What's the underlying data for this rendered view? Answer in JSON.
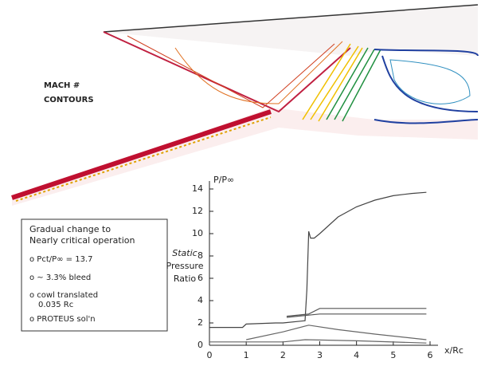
{
  "panel_label": [
    "MACH #",
    "CONTOURS"
  ],
  "info_box": {
    "heading": [
      "Gradual change to",
      "Nearly critical operation"
    ],
    "items": [
      "o  Pct/P∞ = 13.7",
      "o  ~ 3.3% bleed",
      "o  cowl translated",
      "0.035 Rc",
      "o  PROTEUS sol'n"
    ]
  },
  "chart_data": {
    "type": "line",
    "ylabel": "P/P∞",
    "xlabel": "x/Rc",
    "ylabel_lines": [
      "Static",
      "Pressure",
      "Ratio"
    ],
    "xlim": [
      0,
      6
    ],
    "ylim": [
      0,
      14
    ],
    "xticks": [
      0,
      1,
      2,
      3,
      4,
      5,
      6
    ],
    "yticks": [
      0,
      2,
      4,
      6,
      8,
      10,
      12,
      14
    ],
    "series": [
      {
        "color": "#444444",
        "x": [
          0,
          0.9,
          1.0,
          1.8,
          2.0,
          2.6,
          2.65,
          2.7,
          2.75,
          2.85,
          3.0,
          3.5,
          4.0,
          4.5,
          5.0,
          5.5,
          5.9
        ],
        "values": [
          1.6,
          1.6,
          1.9,
          2.0,
          2.0,
          2.2,
          5,
          10.2,
          9.6,
          9.6,
          10,
          11.5,
          12.4,
          13,
          13.4,
          13.6,
          13.7
        ]
      },
      {
        "color": "#555555",
        "x": [
          2.1,
          2.7,
          3.0,
          4.0,
          5.0,
          5.9
        ],
        "values": [
          2.6,
          2.8,
          3.3,
          3.3,
          3.3,
          3.3
        ]
      },
      {
        "color": "#555555",
        "x": [
          2.1,
          2.7,
          3.0,
          4.0,
          5.0,
          5.9
        ],
        "values": [
          2.5,
          2.7,
          2.8,
          2.8,
          2.8,
          2.8
        ]
      },
      {
        "color": "#666666",
        "x": [
          1.0,
          2.0,
          2.7,
          3.5,
          4.5,
          5.9
        ],
        "values": [
          0.5,
          1.2,
          1.8,
          1.4,
          1.0,
          0.5
        ]
      },
      {
        "color": "#666666",
        "x": [
          0,
          2.0,
          2.6,
          4.0,
          5.9
        ],
        "values": [
          0.3,
          0.3,
          0.5,
          0.4,
          0.2
        ]
      }
    ]
  }
}
